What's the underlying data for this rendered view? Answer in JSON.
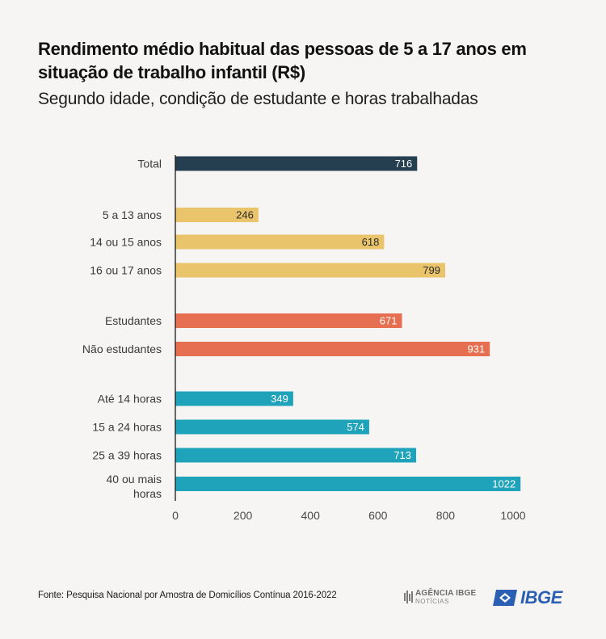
{
  "title": "Rendimento médio habitual das pessoas de 5 a 17 anos em situação de trabalho infantil (R$)",
  "subtitle": "Segundo idade, condição de estudante e horas trabalhadas",
  "footer": {
    "source": "Fonte: Pesquisa Nacional por Amostra de Domicílios Contínua 2016-2022",
    "logo_agencia": "AGÊNCIA IBGE",
    "logo_agencia_sub": "NOTÍCIAS",
    "logo_ibge": "IBGE"
  },
  "colors": {
    "total": "#253f50",
    "age": "#e9c46a",
    "student": "#e76f51",
    "hours": "#1fa3bb"
  },
  "chart_data": {
    "type": "bar",
    "orientation": "horizontal",
    "title": "Rendimento médio habitual das pessoas de 5 a 17 anos em situação de trabalho infantil (R$)",
    "subtitle": "Segundo idade, condição de estudante e horas trabalhadas",
    "xlim": [
      0,
      1000
    ],
    "xticks": [
      0,
      200,
      400,
      600,
      800,
      1000
    ],
    "grid": false,
    "categories": [
      {
        "label": "Total",
        "value": 716,
        "group": "total"
      },
      {
        "label": "5 a 13 anos",
        "value": 246,
        "group": "age"
      },
      {
        "label": "14 ou 15 anos",
        "value": 618,
        "group": "age"
      },
      {
        "label": "16 ou 17 anos",
        "value": 799,
        "group": "age"
      },
      {
        "label": "Estudantes",
        "value": 671,
        "group": "student"
      },
      {
        "label": "Não estudantes",
        "value": 931,
        "group": "student"
      },
      {
        "label": "Até 14 horas",
        "value": 349,
        "group": "hours"
      },
      {
        "label": "15 a 24 horas",
        "value": 574,
        "group": "hours"
      },
      {
        "label": "25 a 39 horas",
        "value": 713,
        "group": "hours"
      },
      {
        "label": "40 ou mais horas",
        "value": 1022,
        "group": "hours"
      }
    ]
  }
}
